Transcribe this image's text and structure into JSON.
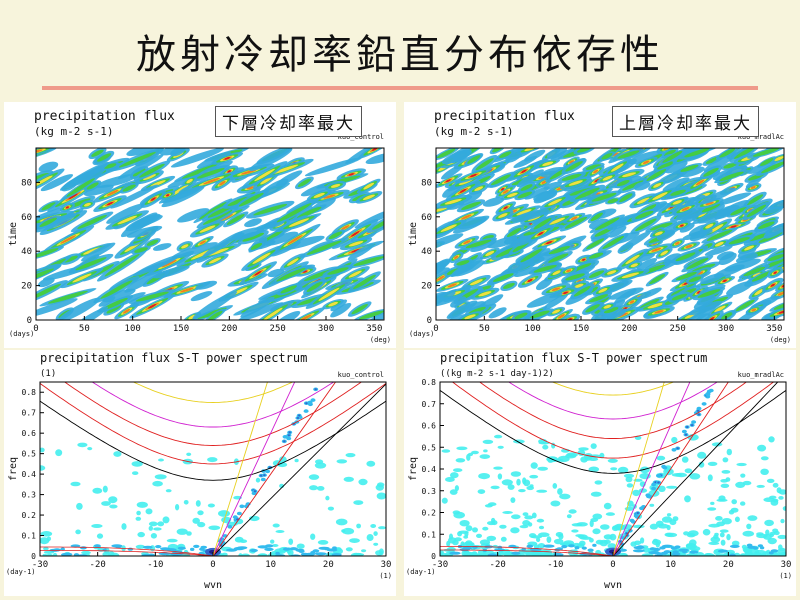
{
  "slide": {
    "title": "放射冷却率鉛直分布依存性",
    "left_label": "下層冷却率最大",
    "right_label": "上層冷却率最大"
  },
  "colors": {
    "background": "#f7f4dc",
    "title_rule": "#ef9a8a",
    "precip_levels": [
      "#33aadd",
      "#44cc44",
      "#f0e040",
      "#f08020",
      "#dd2020"
    ],
    "spectrum_levels": [
      "#44eeee",
      "#33bbee",
      "#3366cc",
      "#202088"
    ]
  },
  "chart_data": [
    {
      "type": "heatmap",
      "title": "precipitation flux",
      "units": "(kg m-2 s-1)",
      "run": "kuo_control",
      "xlabel": "",
      "xunit": "(deg)",
      "ylabel": "time",
      "yunit": "(days)",
      "xlim": [
        0,
        360
      ],
      "ylim": [
        0,
        100
      ],
      "xticks": [
        0,
        50,
        100,
        150,
        200,
        250,
        300,
        350
      ],
      "yticks": [
        0,
        20,
        40,
        60,
        80
      ],
      "propagation": "westward-tilted bands",
      "levels": [
        "blue",
        "green",
        "yellow",
        "orange",
        "red"
      ]
    },
    {
      "type": "heatmap",
      "title": "precipitation flux",
      "units": "(kg m-2 s-1)",
      "run": "kuo_mradlAc",
      "xlabel": "",
      "xunit": "(deg)",
      "ylabel": "time",
      "yunit": "(days)",
      "xlim": [
        0,
        360
      ],
      "ylim": [
        0,
        100
      ],
      "xticks": [
        0,
        50,
        100,
        150,
        200,
        250,
        300,
        350
      ],
      "yticks": [
        0,
        20,
        40,
        60,
        80
      ],
      "propagation": "weak westward-tilted bands, more scattered",
      "levels": [
        "blue",
        "green",
        "yellow",
        "orange",
        "red"
      ]
    },
    {
      "type": "heatmap",
      "title": "precipitation flux S-T power spectrum",
      "units": "(1)",
      "run": "kuo_control",
      "xlabel": "wvn",
      "xunit": "(1)",
      "ylabel": "freq",
      "yunit": "(day-1)",
      "xlim": [
        -30,
        30
      ],
      "ylim": [
        0,
        0.85
      ],
      "xticks": [
        -30,
        -20,
        -10,
        0,
        10,
        20,
        30
      ],
      "yticks": [
        0,
        0.1,
        0.2,
        0.3,
        0.4,
        0.5,
        0.6,
        0.7,
        0.8
      ],
      "dispersion_curves": [
        {
          "color": "black",
          "min_freq": 0.37
        },
        {
          "color": "red",
          "min_freq": 0.45
        },
        {
          "color": "red",
          "min_freq": 0.54
        },
        {
          "color": "magenta",
          "min_freq": 0.63
        },
        {
          "color": "yellow",
          "min_freq": 0.75
        }
      ]
    },
    {
      "type": "heatmap",
      "title": "precipitation flux S-T power spectrum",
      "units": "((kg m-2 s-1 day-1)2)",
      "run": "kuo_mradlAc",
      "xlabel": "wvn",
      "xunit": "(1)",
      "ylabel": "freq",
      "yunit": "(day-1)",
      "xlim": [
        -30,
        30
      ],
      "ylim": [
        0,
        0.8
      ],
      "xticks": [
        -30,
        -20,
        -10,
        0,
        10,
        20,
        30
      ],
      "yticks": [
        0,
        0.1,
        0.2,
        0.3,
        0.4,
        0.5,
        0.6,
        0.7,
        0.8
      ],
      "dispersion_curves": [
        {
          "color": "black",
          "min_freq": 0.38
        },
        {
          "color": "red",
          "min_freq": 0.45
        },
        {
          "color": "red",
          "min_freq": 0.54
        },
        {
          "color": "magenta",
          "min_freq": 0.63
        },
        {
          "color": "yellow",
          "min_freq": 0.74
        }
      ]
    }
  ]
}
